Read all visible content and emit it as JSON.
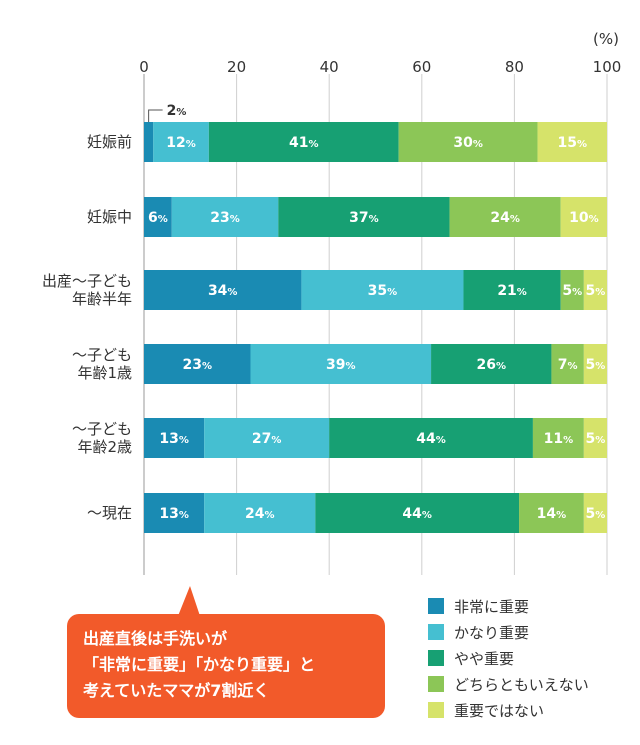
{
  "chart_data": {
    "type": "bar",
    "orientation": "horizontal",
    "stacked": true,
    "unit": "(%)",
    "xlim": [
      0,
      100
    ],
    "xticks": [
      "0",
      "20",
      "40",
      "60",
      "80",
      "100"
    ],
    "grid": true,
    "categories": [
      [
        "妊娠前"
      ],
      [
        "妊娠中"
      ],
      [
        "出産～子ども",
        "年齢半年"
      ],
      [
        "～子ども",
        "年齢1歳"
      ],
      [
        "～子ども",
        "年齢2歳"
      ],
      [
        "～現在"
      ]
    ],
    "series": [
      {
        "name": "非常に重要",
        "color": "#1a8bb3",
        "values": [
          2,
          6,
          34,
          23,
          13,
          13
        ]
      },
      {
        "name": "かなり重要",
        "color": "#45bfd1",
        "values": [
          12,
          23,
          35,
          39,
          27,
          24
        ]
      },
      {
        "name": "やや重要",
        "color": "#17a073",
        "values": [
          41,
          37,
          21,
          26,
          44,
          44
        ]
      },
      {
        "name": "どちらともいえない",
        "color": "#8cc657",
        "values": [
          30,
          24,
          5,
          7,
          11,
          14
        ]
      },
      {
        "name": "重要ではない",
        "color": "#d6e36a",
        "values": [
          15,
          10,
          5,
          5,
          5,
          5
        ]
      }
    ],
    "outside_label": {
      "category_index": 0,
      "series_index": 0,
      "text": "2"
    },
    "percent_suffix": "%"
  },
  "callout": {
    "lines": [
      "出産直後は手洗いが",
      "「非常に重要」「かなり重要」と",
      "考えていたママが7割近く"
    ]
  }
}
